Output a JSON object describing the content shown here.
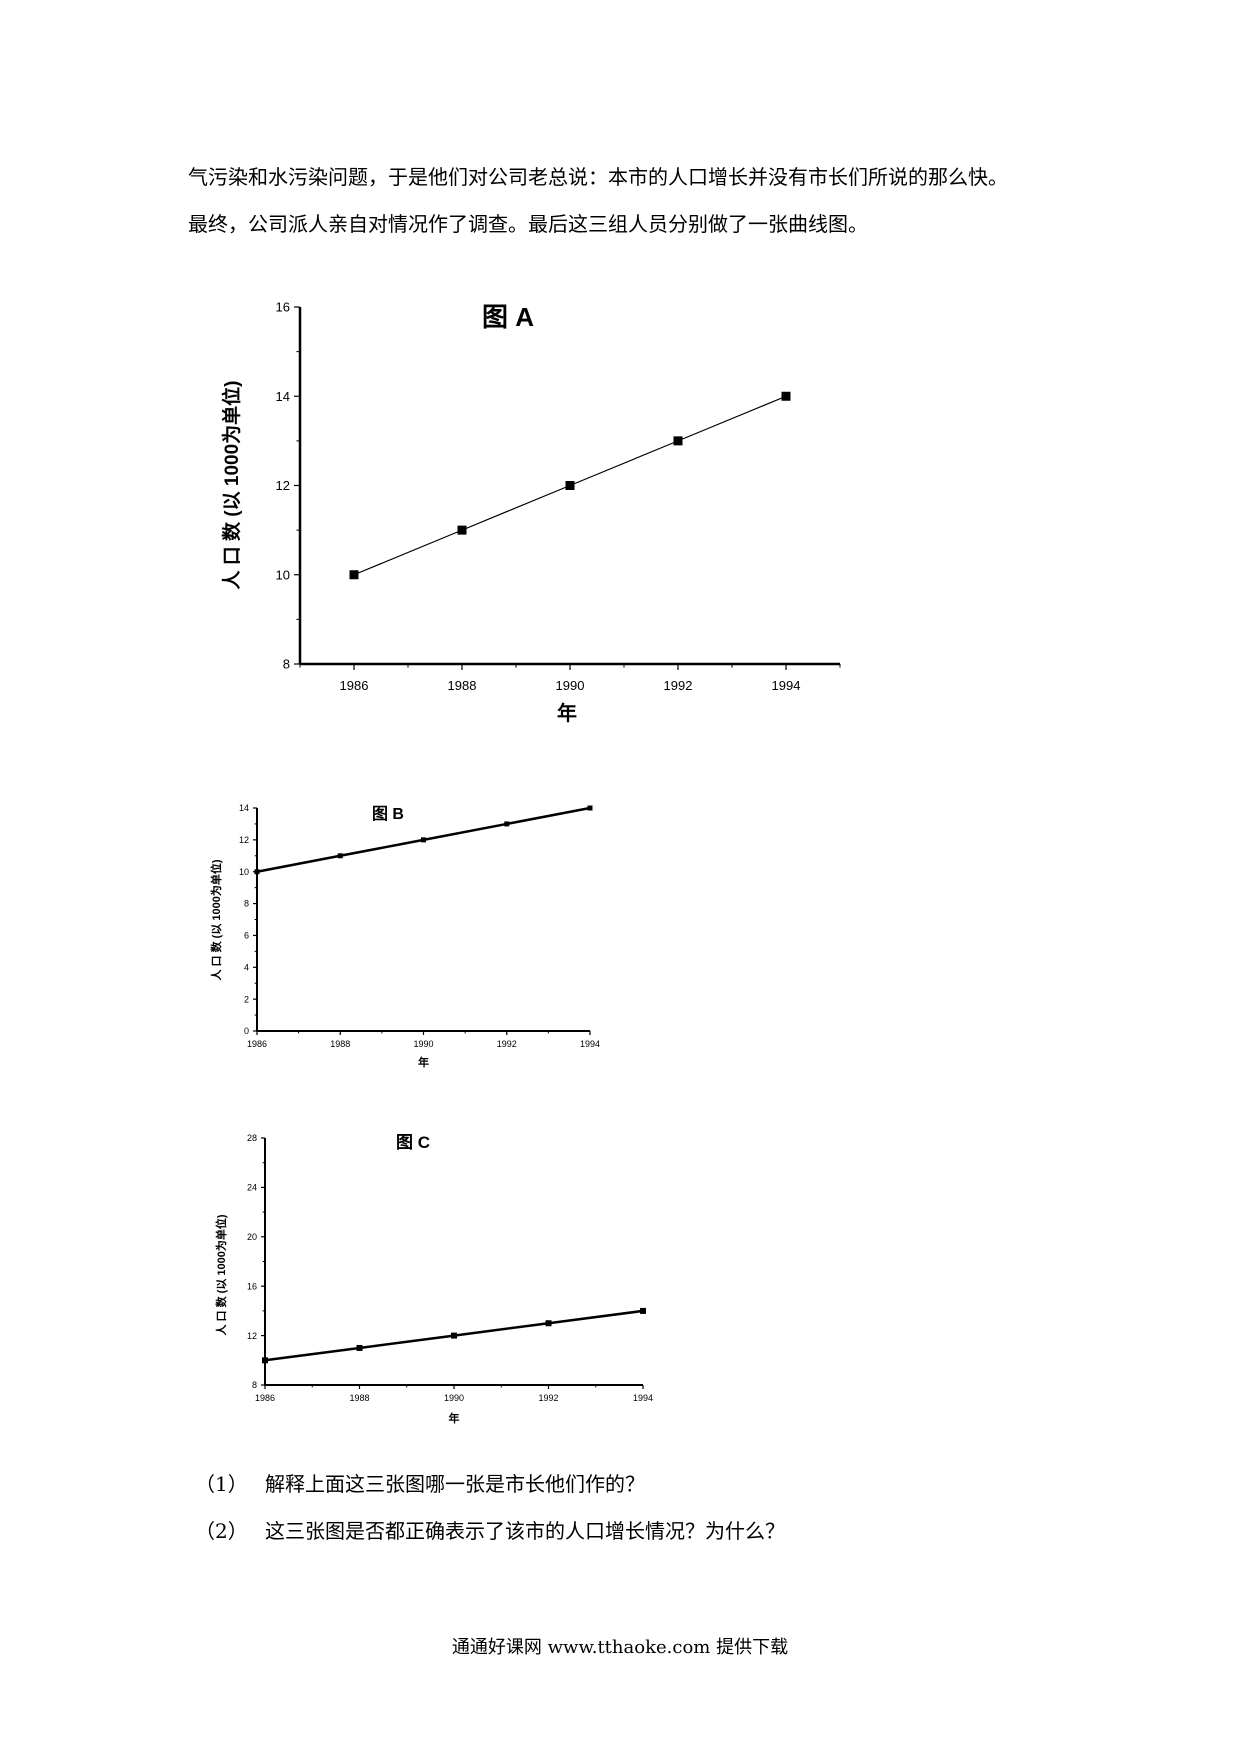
{
  "document": {
    "paragraphs": [
      "气污染和水污染问题，于是他们对公司老总说：本市的人口增长并没有市长们所说的那么快。",
      "最终，公司派人亲自对情况作了调查。最后这三组人员分别做了一张曲线图。"
    ],
    "questions": [
      {
        "num": "（1）",
        "text": "解释上面这三张图哪一张是市长他们作的？"
      },
      {
        "num": "（2）",
        "text": "这三张图是否都正确表示了该市的人口增长情况？为什么？"
      }
    ],
    "footer": "通通好课网  www.tthaoke.com  提供下载"
  },
  "chart_data": [
    {
      "type": "line",
      "title": "图 A",
      "xlabel": "年",
      "ylabel": "人 口 数  (以  1000为单位)",
      "x": [
        1986,
        1988,
        1990,
        1992,
        1994
      ],
      "series": [
        {
          "values": [
            10,
            11,
            12,
            13,
            14
          ]
        }
      ],
      "xticks": [
        1986,
        1988,
        1990,
        1992,
        1994
      ],
      "yticks": [
        8,
        10,
        12,
        14,
        16
      ],
      "xlim": [
        1985,
        1995
      ],
      "ylim": [
        8,
        16
      ],
      "grid": false
    },
    {
      "type": "line",
      "title": "图 B",
      "xlabel": "年",
      "ylabel": "人 口 数  (以  1000为单位)",
      "x": [
        1986,
        1988,
        1990,
        1992,
        1994
      ],
      "series": [
        {
          "values": [
            10,
            11,
            12,
            13,
            14
          ]
        }
      ],
      "xticks": [
        1986,
        1988,
        1990,
        1992,
        1994
      ],
      "yticks": [
        0,
        2,
        4,
        6,
        8,
        10,
        12,
        14
      ],
      "xlim": [
        1986,
        1994
      ],
      "ylim": [
        0,
        14
      ],
      "grid": false
    },
    {
      "type": "line",
      "title": "图 C",
      "xlabel": "年",
      "ylabel": "人 口 数  (以  1000为单位)",
      "x": [
        1986,
        1988,
        1990,
        1992,
        1994
      ],
      "series": [
        {
          "values": [
            10,
            11,
            12,
            13,
            14
          ]
        }
      ],
      "xticks": [
        1986,
        1988,
        1990,
        1992,
        1994
      ],
      "yticks": [
        8,
        12,
        16,
        20,
        24,
        28
      ],
      "xlim": [
        1986,
        1994
      ],
      "ylim": [
        8,
        28
      ],
      "grid": false
    }
  ]
}
